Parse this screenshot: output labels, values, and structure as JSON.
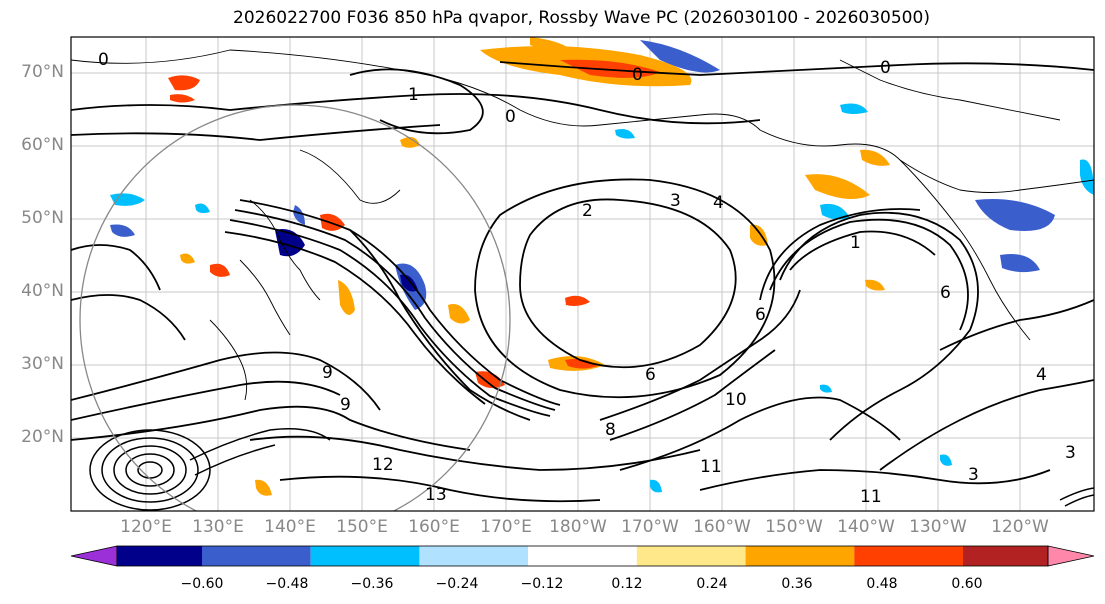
{
  "title": "2026022700 F036 850 hPa qvapor, Rossby Wave PC (2026030100 - 2026030500)",
  "lat_labels": [
    "70°N",
    "60°N",
    "50°N",
    "40°N",
    "30°N",
    "20°N"
  ],
  "lon_labels": [
    "120°E",
    "130°E",
    "140°E",
    "150°E",
    "160°E",
    "170°E",
    "180°W",
    "170°W",
    "160°W",
    "150°W",
    "140°W",
    "130°W",
    "120°W"
  ],
  "colorbar": {
    "ticks": [
      "−0.60",
      "−0.48",
      "−0.36",
      "−0.24",
      "−0.12",
      "0.12",
      "0.24",
      "0.36",
      "0.48",
      "0.60"
    ],
    "colors": [
      "#9b30d9",
      "#00008b",
      "#3a5fcd",
      "#00bfff",
      "#b0e2ff",
      "#ffffff",
      "#ffe88a",
      "#ffa500",
      "#ff4000",
      "#b22222",
      "#ff88aa"
    ],
    "extend_low": "#9b30d9",
    "extend_high": "#ff88aa"
  },
  "contour_labels": [
    "0",
    "0",
    "0",
    "0",
    "1",
    "1",
    "2",
    "3",
    "4",
    "4",
    "6",
    "8",
    "9",
    "9",
    "11",
    "11",
    "12",
    "13",
    "3",
    "3",
    "6",
    "6",
    "10"
  ],
  "colors": {
    "label_gray": "#888888",
    "grid": "#c8c8c8",
    "circle": "#888888"
  }
}
